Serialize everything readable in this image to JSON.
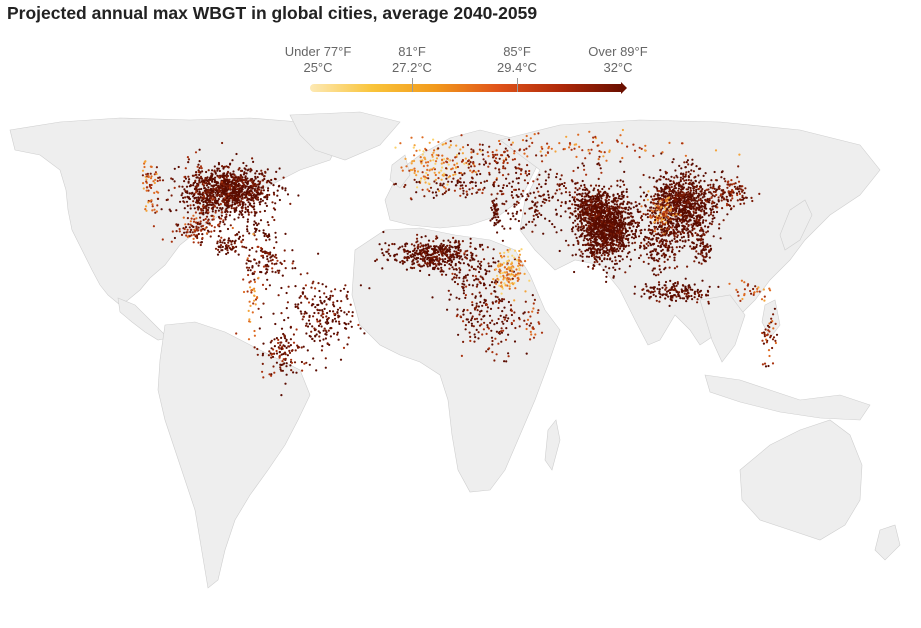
{
  "title": "Projected annual max WBGT in global cities, average 2040-2059",
  "legend": {
    "stops": [
      {
        "f": "Under 77°F",
        "c": "25°C"
      },
      {
        "f": "81°F",
        "c": "27.2°C"
      },
      {
        "f": "85°F",
        "c": "29.4°C"
      },
      {
        "f": "Over 89°F",
        "c": "32°C"
      }
    ],
    "gradient": [
      "#fde9b4",
      "#f9c43a",
      "#f29a1c",
      "#e0541a",
      "#b02a0a",
      "#6b0f00"
    ]
  },
  "colors": {
    "land": "#eeeeee",
    "border": "#cfcfcf",
    "ocean": "#ffffff",
    "dot_palette": [
      "#5a0c00",
      "#7a1a05",
      "#a8310e",
      "#dd6a22",
      "#f3a33a",
      "#fbd36e"
    ]
  },
  "map_data": {
    "projection": "equirectangular-like world map",
    "clusters": [
      {
        "region": "eastern-usa",
        "lon": -85,
        "lat": 37,
        "spread": [
          9,
          5
        ],
        "n": 900,
        "heat": 0.05
      },
      {
        "region": "central-usa",
        "lon": -97,
        "lat": 37,
        "spread": [
          6,
          6
        ],
        "n": 200,
        "heat": 0.15
      },
      {
        "region": "us-west-coast",
        "lon": -120,
        "lat": 38,
        "spread": [
          2,
          6
        ],
        "n": 60,
        "heat": 0.5
      },
      {
        "region": "mexico",
        "lon": -100,
        "lat": 21,
        "spread": [
          5,
          4
        ],
        "n": 120,
        "heat": 0.3
      },
      {
        "region": "central-america",
        "lon": -86,
        "lat": 14,
        "spread": [
          3,
          2
        ],
        "n": 60,
        "heat": 0.1
      },
      {
        "region": "caribbean",
        "lon": -72,
        "lat": 19,
        "spread": [
          6,
          2
        ],
        "n": 40,
        "heat": 0.05
      },
      {
        "region": "colombia-venezuela",
        "lon": -70,
        "lat": 7,
        "spread": [
          5,
          4
        ],
        "n": 90,
        "heat": 0.15
      },
      {
        "region": "brazil-east",
        "lon": -43,
        "lat": -17,
        "spread": [
          6,
          8
        ],
        "n": 160,
        "heat": 0.1
      },
      {
        "region": "brazil-interior",
        "lon": -55,
        "lat": -10,
        "spread": [
          8,
          7
        ],
        "n": 60,
        "heat": 0.1
      },
      {
        "region": "argentina",
        "lon": -62,
        "lat": -32,
        "spread": [
          5,
          6
        ],
        "n": 120,
        "heat": 0.2
      },
      {
        "region": "andes",
        "lon": -76,
        "lat": -10,
        "spread": [
          2,
          8
        ],
        "n": 40,
        "heat": 0.6
      },
      {
        "region": "western-europe",
        "lon": 5,
        "lat": 48,
        "spread": [
          8,
          5
        ],
        "n": 140,
        "heat": 0.7
      },
      {
        "region": "eastern-europe",
        "lon": 30,
        "lat": 50,
        "spread": [
          10,
          5
        ],
        "n": 120,
        "heat": 0.3
      },
      {
        "region": "mediterranean",
        "lon": 15,
        "lat": 39,
        "spread": [
          12,
          3
        ],
        "n": 90,
        "heat": 0.15
      },
      {
        "region": "middle-east",
        "lon": 45,
        "lat": 30,
        "spread": [
          8,
          6
        ],
        "n": 110,
        "heat": 0.05
      },
      {
        "region": "nile",
        "lon": 31,
        "lat": 28,
        "spread": [
          1,
          3
        ],
        "n": 40,
        "heat": 0.0
      },
      {
        "region": "central-asia",
        "lon": 63,
        "lat": 40,
        "spread": [
          10,
          5
        ],
        "n": 70,
        "heat": 0.15
      },
      {
        "region": "west-africa",
        "lon": 3,
        "lat": 10,
        "spread": [
          9,
          3
        ],
        "n": 420,
        "heat": 0.05
      },
      {
        "region": "central-africa",
        "lon": 22,
        "lat": 2,
        "spread": [
          8,
          5
        ],
        "n": 110,
        "heat": 0.1
      },
      {
        "region": "east-africa-highlands",
        "lon": 37,
        "lat": 3,
        "spread": [
          3,
          5
        ],
        "n": 130,
        "heat": 0.75
      },
      {
        "region": "southern-africa",
        "lon": 27,
        "lat": -18,
        "spread": [
          8,
          8
        ],
        "n": 170,
        "heat": 0.2
      },
      {
        "region": "madagascar",
        "lon": 47,
        "lat": -19,
        "spread": [
          2,
          4
        ],
        "n": 25,
        "heat": 0.4
      },
      {
        "region": "india",
        "lon": 79,
        "lat": 22,
        "spread": [
          6,
          7
        ],
        "n": 1300,
        "heat": 0.0
      },
      {
        "region": "pakistan",
        "lon": 71,
        "lat": 30,
        "spread": [
          4,
          4
        ],
        "n": 150,
        "heat": 0.05
      },
      {
        "region": "east-china",
        "lon": 113,
        "lat": 31,
        "spread": [
          7,
          7
        ],
        "n": 950,
        "heat": 0.05
      },
      {
        "region": "sichuan-yunnan",
        "lon": 104,
        "lat": 27,
        "spread": [
          3,
          4
        ],
        "n": 100,
        "heat": 0.6
      },
      {
        "region": "korea-japan",
        "lon": 133,
        "lat": 36,
        "spread": [
          5,
          3
        ],
        "n": 120,
        "heat": 0.2
      },
      {
        "region": "southeast-asia",
        "lon": 103,
        "lat": 15,
        "spread": [
          5,
          6
        ],
        "n": 180,
        "heat": 0.05
      },
      {
        "region": "philippines",
        "lon": 122,
        "lat": 12,
        "spread": [
          2,
          4
        ],
        "n": 70,
        "heat": 0.05
      },
      {
        "region": "indonesia",
        "lon": 110,
        "lat": -6,
        "spread": [
          8,
          2
        ],
        "n": 160,
        "heat": 0.05
      },
      {
        "region": "new-guinea",
        "lon": 143,
        "lat": -5,
        "spread": [
          4,
          2
        ],
        "n": 30,
        "heat": 0.5
      },
      {
        "region": "australia-east",
        "lon": 151,
        "lat": -27,
        "spread": [
          2,
          6
        ],
        "n": 40,
        "heat": 0.3
      },
      {
        "region": "russia-siberia",
        "lon": 70,
        "lat": 56,
        "spread": [
          25,
          3
        ],
        "n": 90,
        "heat": 0.6
      }
    ]
  }
}
